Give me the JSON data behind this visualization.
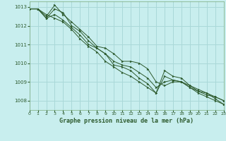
{
  "title": "Graphe pression niveau de la mer (hPa)",
  "bg_color": "#c8eeee",
  "grid_color": "#aad8d8",
  "line_color": "#2d5a2d",
  "marker_color": "#2d5a2d",
  "spine_color": "#7aaa7a",
  "tick_color": "#2d5a2d",
  "xlim": [
    0,
    23
  ],
  "ylim": [
    1007.5,
    1013.3
  ],
  "yticks": [
    1008,
    1009,
    1010,
    1011,
    1012,
    1013
  ],
  "xticks": [
    0,
    1,
    2,
    3,
    4,
    5,
    6,
    7,
    8,
    9,
    10,
    11,
    12,
    13,
    14,
    15,
    16,
    17,
    18,
    19,
    20,
    21,
    22,
    23
  ],
  "series": [
    [
      1012.9,
      1012.9,
      1012.5,
      1013.1,
      1012.6,
      1012.2,
      1011.8,
      1011.4,
      1010.9,
      1010.8,
      1010.5,
      1010.1,
      1010.1,
      1010.0,
      1009.7,
      1009.0,
      1008.8,
      1009.0,
      1009.0,
      1008.8,
      1008.5,
      1008.4,
      1008.1,
      1007.8
    ],
    [
      1012.9,
      1012.9,
      1012.4,
      1012.9,
      1012.7,
      1012.0,
      1011.7,
      1011.2,
      1010.8,
      1010.5,
      1010.1,
      1009.9,
      1009.8,
      1009.5,
      1009.2,
      1008.7,
      1009.0,
      1009.1,
      1009.0,
      1008.7,
      1008.4,
      1008.2,
      1008.0,
      1007.8
    ],
    [
      1012.9,
      1012.9,
      1012.4,
      1012.6,
      1012.3,
      1011.9,
      1011.5,
      1011.0,
      1010.8,
      1010.5,
      1009.9,
      1009.8,
      1009.6,
      1009.2,
      1008.9,
      1008.4,
      1009.6,
      1009.3,
      1009.2,
      1008.8,
      1008.6,
      1008.4,
      1008.2,
      1008.0
    ],
    [
      1012.9,
      1012.9,
      1012.6,
      1012.4,
      1012.2,
      1011.8,
      1011.3,
      1010.9,
      1010.6,
      1010.1,
      1009.8,
      1009.5,
      1009.3,
      1009.0,
      1008.7,
      1008.4,
      1009.3,
      1009.1,
      1009.0,
      1008.7,
      1008.5,
      1008.3,
      1008.2,
      1008.0
    ]
  ]
}
